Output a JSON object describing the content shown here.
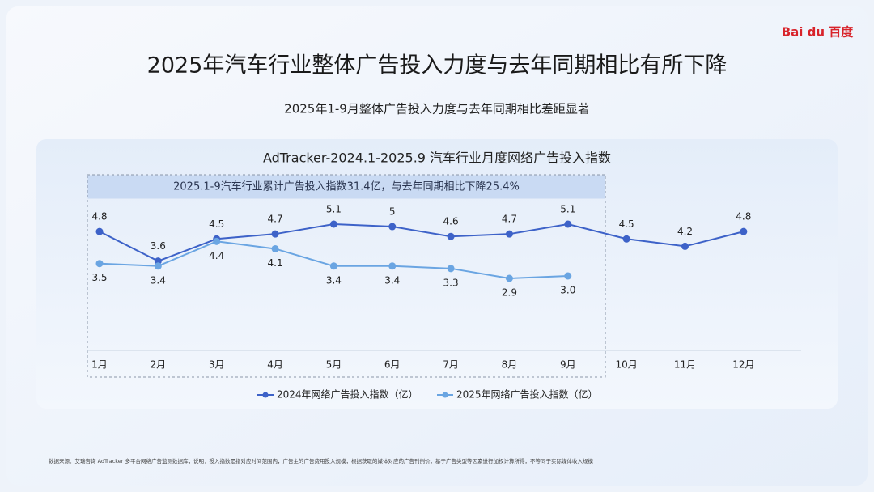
{
  "header": {
    "logo": "Bai du 百度",
    "title": "2025年汽车行业整体广告投入力度与去年同期相比有所下降",
    "subtitle": "2025年1-9月整体广告投入力度与去年同期相比差距显著"
  },
  "chart_data": {
    "type": "line",
    "title": "AdTracker-2024.1-2025.9 汽车行业月度网络广告投入指数",
    "annotation": "2025.1-9汽车行业累计广告投入指数31.4亿，与去年同期相比下降25.4%",
    "categories": [
      "1月",
      "2月",
      "3月",
      "4月",
      "5月",
      "6月",
      "7月",
      "8月",
      "9月",
      "10月",
      "11月",
      "12月"
    ],
    "series": [
      {
        "name": "2024年网络广告投入指数（亿）",
        "color": "#3d62c8",
        "values": [
          4.8,
          3.6,
          4.5,
          4.7,
          5.1,
          5,
          4.6,
          4.7,
          5.1,
          4.5,
          4.2,
          4.8
        ]
      },
      {
        "name": "2025年网络广告投入指数（亿）",
        "color": "#6aa5e2",
        "values": [
          3.5,
          3.4,
          4.4,
          4.1,
          3.4,
          3.4,
          3.3,
          2.9,
          3.0,
          null,
          null,
          null
        ],
        "value_labels": [
          "3.5",
          "3.4",
          "4.4",
          "4.1",
          "3.4",
          "3.4",
          "3.3",
          "2.9",
          "3.0",
          null,
          null,
          null
        ]
      }
    ],
    "legend": "bottom"
  },
  "footer": {
    "source": "数据来源：艾瑞咨询 AdTracker 多平台网络广告监测数据库；说明：投入指数是指对应时间范围内，广告主的广告费用投入规模；根据获取的媒体对应的广告刊例价，基于广告类型等因素进行加权计算所得，不等同于实际媒体收入规模"
  }
}
